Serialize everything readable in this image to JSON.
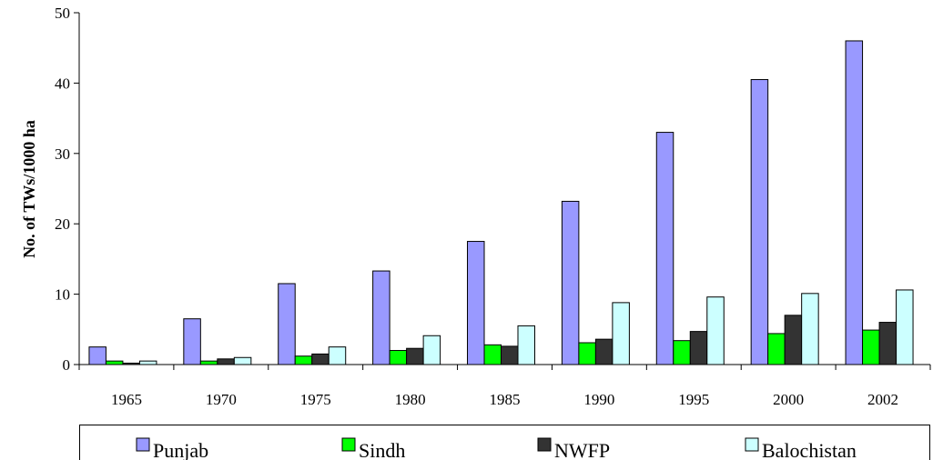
{
  "chart_data": {
    "type": "bar",
    "ylabel": "No. of TWs/1000 ha",
    "xlabel": "",
    "ylim": [
      0,
      50
    ],
    "yticks": [
      0,
      10,
      20,
      30,
      40,
      50
    ],
    "grid": false,
    "legend_position": "bottom",
    "categories": [
      "1965",
      "1970",
      "1975",
      "1980",
      "1985",
      "1990",
      "1995",
      "2000",
      "2002"
    ],
    "series": [
      {
        "name": "Punjab",
        "color": "#9999ff",
        "values": [
          2.5,
          6.5,
          11.5,
          13.3,
          17.5,
          23.2,
          33.0,
          40.5,
          46.0
        ]
      },
      {
        "name": "Sindh",
        "color": "#00ff00",
        "values": [
          0.5,
          0.5,
          1.2,
          2.0,
          2.8,
          3.1,
          3.4,
          4.4,
          4.9
        ]
      },
      {
        "name": "NWFP",
        "color": "#333333",
        "values": [
          0.2,
          0.8,
          1.5,
          2.3,
          2.6,
          3.6,
          4.7,
          7.0,
          6.0
        ]
      },
      {
        "name": "Balochistan",
        "color": "#ccffff",
        "values": [
          0.5,
          1.0,
          2.5,
          4.1,
          5.5,
          8.8,
          9.6,
          10.1,
          10.6
        ]
      }
    ]
  }
}
